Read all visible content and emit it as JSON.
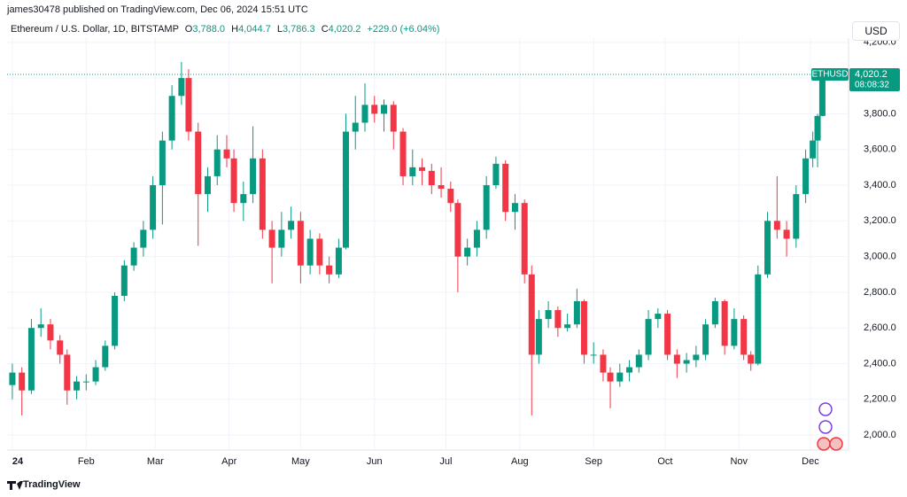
{
  "header": {
    "published": "james30478 published on TradingView.com, Dec 06, 2024 15:51 UTC",
    "symbol": "Ethereum / U.S. Dollar, 1D, BITSTAMP",
    "open_key": "O",
    "open": "3,788.0",
    "high_key": "H",
    "high": "4,044.7",
    "low_key": "L",
    "low": "3,786.3",
    "close_key": "C",
    "close": "4,020.2",
    "change": "+229.0 (+6.04%)",
    "currency": "USD"
  },
  "price_badge": {
    "ticker": "ETHUSD",
    "price": "4,020.2",
    "countdown": "08:08:32"
  },
  "footer": "TradingView",
  "chart_data": {
    "type": "candlestick",
    "up_color": "#089981",
    "down_color": "#f23645",
    "grid": true,
    "xlim": [
      -2.2,
      351
    ],
    "ylim": [
      1916,
      4224
    ],
    "xticks": [
      {
        "value": 0,
        "label": "24"
      },
      {
        "value": 31,
        "label": "Feb"
      },
      {
        "value": 60,
        "label": "Mar"
      },
      {
        "value": 91,
        "label": "Apr"
      },
      {
        "value": 121,
        "label": "May"
      },
      {
        "value": 152,
        "label": "Jun"
      },
      {
        "value": 182,
        "label": "Jul"
      },
      {
        "value": 213,
        "label": "Aug"
      },
      {
        "value": 244,
        "label": "Sep"
      },
      {
        "value": 274,
        "label": "Oct"
      },
      {
        "value": 305,
        "label": "Nov"
      },
      {
        "value": 335,
        "label": "Dec"
      }
    ],
    "yticks": [
      {
        "value": 2000,
        "label": "2,000.0"
      },
      {
        "value": 2200,
        "label": "2,200.0"
      },
      {
        "value": 2400,
        "label": "2,400.0"
      },
      {
        "value": 2600,
        "label": "2,600.0"
      },
      {
        "value": 2800,
        "label": "2,800.0"
      },
      {
        "value": 3000,
        "label": "3,000.0"
      },
      {
        "value": 3200,
        "label": "3,200.0"
      },
      {
        "value": 3400,
        "label": "3,400.0"
      },
      {
        "value": 3600,
        "label": "3,600.0"
      },
      {
        "value": 3800,
        "label": "3,800.0"
      },
      {
        "value": 4000,
        "label": "4,000.0"
      },
      {
        "value": 4200,
        "label": "4,200.0"
      }
    ],
    "x": [
      0,
      4,
      8,
      12,
      16,
      20,
      23,
      27,
      31,
      35,
      39,
      43,
      47,
      51,
      55,
      59,
      63,
      67,
      71,
      74,
      78,
      82,
      86,
      90,
      93,
      97,
      101,
      105,
      109,
      113,
      117,
      121,
      125,
      129,
      133,
      137,
      140,
      144,
      148,
      152,
      156,
      160,
      164,
      168,
      172,
      176,
      180,
      184,
      187,
      191,
      195,
      199,
      203,
      207,
      211,
      215,
      218,
      221,
      225,
      229,
      233,
      237,
      240,
      244,
      248,
      251,
      255,
      259,
      263,
      267,
      271,
      275,
      279,
      283,
      287,
      291,
      295,
      299,
      303,
      307,
      310,
      313,
      317,
      321,
      325,
      329,
      333,
      336,
      338,
      340
    ],
    "open": [
      2280,
      2350,
      2250,
      2600,
      2620,
      2530,
      2450,
      2250,
      2300,
      2300,
      2380,
      2500,
      2780,
      2950,
      3050,
      3150,
      3400,
      3650,
      3900,
      4000,
      3700,
      3350,
      3450,
      3600,
      3550,
      3300,
      3350,
      3550,
      3150,
      3050,
      3150,
      3200,
      2950,
      3100,
      2950,
      2900,
      3050,
      3700,
      3750,
      3850,
      3800,
      3850,
      3700,
      3450,
      3500,
      3480,
      3400,
      3380,
      3300,
      3000,
      3050,
      3150,
      3400,
      3520,
      3250,
      3300,
      2900,
      2450,
      2650,
      2700,
      2600,
      2620,
      2750,
      2450,
      2450,
      2350,
      2300,
      2350,
      2380,
      2450,
      2650,
      2680,
      2450,
      2400,
      2420,
      2450,
      2620,
      2750,
      2500,
      2650,
      2450,
      2400,
      2900,
      3200,
      3150,
      3100,
      3350,
      3550,
      3650,
      3788
    ],
    "high": [
      2400,
      2380,
      2650,
      2710,
      2650,
      2560,
      2480,
      2330,
      2340,
      2420,
      2530,
      2800,
      2980,
      3080,
      3200,
      3450,
      3700,
      3960,
      4090,
      4050,
      3750,
      3500,
      3680,
      3680,
      3600,
      3420,
      3730,
      3600,
      3200,
      3250,
      3280,
      3250,
      3150,
      3130,
      3000,
      3100,
      3800,
      3900,
      3970,
      3900,
      3880,
      3870,
      3720,
      3600,
      3550,
      3520,
      3500,
      3420,
      3320,
      3100,
      3200,
      3450,
      3560,
      3540,
      3350,
      3320,
      2950,
      2700,
      2750,
      2720,
      2680,
      2820,
      2760,
      2520,
      2480,
      2380,
      2400,
      2420,
      2480,
      2700,
      2710,
      2700,
      2480,
      2460,
      2500,
      2650,
      2770,
      2760,
      2710,
      2670,
      2470,
      2950,
      3250,
      3450,
      3200,
      3400,
      3600,
      3700,
      3800,
      4044.7
    ],
    "low": [
      2200,
      2110,
      2230,
      2550,
      2480,
      2400,
      2170,
      2200,
      2250,
      2280,
      2360,
      2480,
      2750,
      2920,
      3000,
      3100,
      3180,
      3600,
      3850,
      3650,
      3060,
      3250,
      3400,
      3500,
      3250,
      3200,
      3300,
      3100,
      2850,
      3000,
      3100,
      2850,
      2900,
      2900,
      2850,
      2880,
      3040,
      3600,
      3700,
      3750,
      3700,
      3600,
      3400,
      3400,
      3400,
      3350,
      3330,
      3250,
      2800,
      2950,
      3000,
      3100,
      3380,
      3200,
      3150,
      2850,
      2110,
      2400,
      2600,
      2550,
      2580,
      2600,
      2400,
      2400,
      2300,
      2150,
      2270,
      2300,
      2350,
      2420,
      2600,
      2420,
      2320,
      2350,
      2380,
      2420,
      2600,
      2450,
      2480,
      2420,
      2360,
      2390,
      2880,
      3100,
      3000,
      3050,
      3300,
      3500,
      3500,
      3786.3
    ],
    "close": [
      2350,
      2250,
      2600,
      2620,
      2530,
      2450,
      2250,
      2300,
      2300,
      2380,
      2500,
      2780,
      2950,
      3050,
      3150,
      3400,
      3650,
      3900,
      4000,
      3700,
      3350,
      3450,
      3600,
      3550,
      3300,
      3350,
      3550,
      3150,
      3050,
      3150,
      3200,
      2950,
      3100,
      2950,
      2900,
      3050,
      3700,
      3750,
      3850,
      3800,
      3850,
      3700,
      3450,
      3500,
      3480,
      3400,
      3380,
      3300,
      3000,
      3050,
      3150,
      3400,
      3520,
      3250,
      3300,
      2900,
      2450,
      2650,
      2700,
      2600,
      2620,
      2750,
      2450,
      2450,
      2350,
      2300,
      2350,
      2380,
      2450,
      2650,
      2680,
      2450,
      2400,
      2420,
      2450,
      2620,
      2750,
      2500,
      2650,
      2450,
      2400,
      2900,
      3200,
      3150,
      3100,
      3350,
      3550,
      3650,
      3788,
      4020.2
    ]
  }
}
